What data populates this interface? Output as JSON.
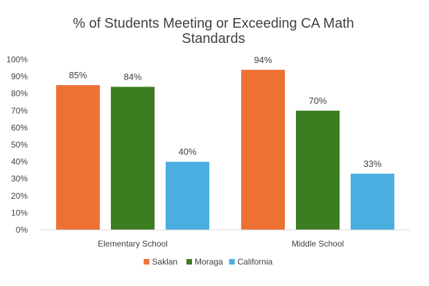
{
  "chart_data": {
    "type": "bar",
    "title_lines": [
      "% of Students Meeting or Exceeding CA Math",
      "Standards"
    ],
    "categories": [
      "Elementary School",
      "Middle School"
    ],
    "series": [
      {
        "name": "Saklan",
        "color": "#ED7133",
        "values": [
          85,
          94
        ],
        "labels": [
          "85%",
          "94%"
        ]
      },
      {
        "name": "Moraga",
        "color": "#3C7D22",
        "values": [
          84,
          70
        ],
        "labels": [
          "84%",
          "70%"
        ]
      },
      {
        "name": "California",
        "color": "#4AAEE0",
        "values": [
          40,
          33
        ],
        "labels": [
          "40%",
          "33%"
        ]
      }
    ],
    "y_ticks": [
      "0%",
      "10%",
      "20%",
      "30%",
      "40%",
      "50%",
      "60%",
      "70%",
      "80%",
      "90%",
      "100%"
    ],
    "ylim": [
      0,
      100
    ],
    "grid": false,
    "legend_position": "bottom"
  }
}
